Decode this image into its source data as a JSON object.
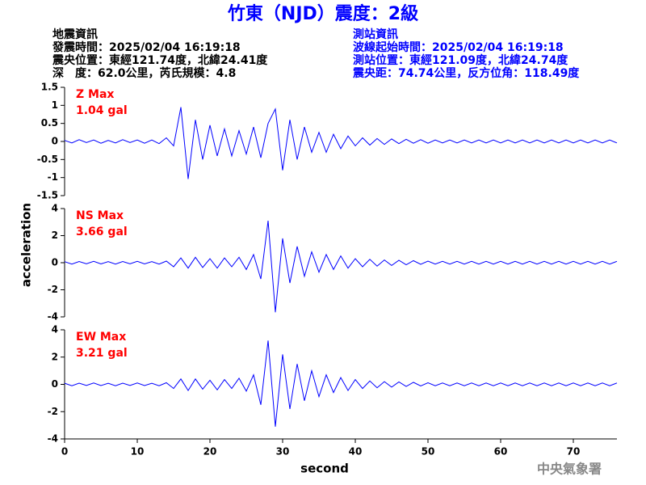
{
  "header": {
    "title": "竹東（NJD）震度：2級",
    "left": [
      "地震資訊",
      "發震時間：2025/02/04 16:19:18",
      "震央位置：東經121.74度，北緯24.41度",
      "深　度：62.0公里，芮氏規模：4.8"
    ],
    "right": [
      "測站資訊",
      "波線起始時間：2025/02/04 16:19:18",
      "測站位置：東經121.09度，北緯24.74度",
      "震央距：74.74公里，反方位角：118.49度"
    ],
    "footer": "中央氣象署"
  },
  "chart_data": [
    {
      "type": "line",
      "annotation": "Z Max",
      "annotation_value": "1.04 gal",
      "color": "#0000ff",
      "xlim": [
        0,
        76
      ],
      "ylim": [
        -1.5,
        1.5
      ],
      "yticks": [
        -1.5,
        -1,
        -0.5,
        0,
        0.5,
        1,
        1.5
      ],
      "x": [
        0,
        1,
        2,
        3,
        4,
        5,
        6,
        7,
        8,
        9,
        10,
        11,
        12,
        13,
        14,
        15,
        16,
        17,
        18,
        19,
        20,
        21,
        22,
        23,
        24,
        25,
        26,
        27,
        28,
        29,
        30,
        31,
        32,
        33,
        34,
        35,
        36,
        37,
        38,
        39,
        40,
        41,
        42,
        43,
        44,
        45,
        46,
        47,
        48,
        49,
        50,
        51,
        52,
        53,
        54,
        55,
        56,
        57,
        58,
        59,
        60,
        61,
        62,
        63,
        64,
        65,
        66,
        67,
        68,
        69,
        70,
        71,
        72,
        73,
        74,
        75,
        76
      ],
      "values": [
        0.03,
        -0.04,
        0.05,
        -0.03,
        0.04,
        -0.05,
        0.03,
        -0.04,
        0.05,
        -0.03,
        0.04,
        -0.05,
        0.04,
        -0.06,
        0.1,
        -0.12,
        0.95,
        -1.04,
        0.6,
        -0.5,
        0.45,
        -0.4,
        0.35,
        -0.4,
        0.3,
        -0.35,
        0.4,
        -0.45,
        0.5,
        0.9,
        -0.8,
        0.6,
        -0.5,
        0.4,
        -0.3,
        0.25,
        -0.3,
        0.2,
        -0.2,
        0.15,
        -0.12,
        0.1,
        -0.1,
        0.08,
        -0.08,
        0.07,
        -0.06,
        0.06,
        -0.05,
        0.05,
        -0.05,
        0.04,
        -0.04,
        0.04,
        -0.04,
        0.04,
        -0.04,
        0.04,
        -0.04,
        0.04,
        -0.04,
        0.04,
        -0.04,
        0.04,
        -0.04,
        0.04,
        -0.04,
        0.04,
        -0.04,
        0.04,
        -0.04,
        0.04,
        -0.04,
        0.04,
        -0.04,
        0.04,
        -0.04
      ]
    },
    {
      "type": "line",
      "annotation": "NS Max",
      "annotation_value": "3.66 gal",
      "ylabel": "acceleration",
      "color": "#0000ff",
      "xlim": [
        0,
        76
      ],
      "ylim": [
        -4,
        4
      ],
      "yticks": [
        -4,
        -2,
        0,
        2,
        4
      ],
      "x": [
        0,
        1,
        2,
        3,
        4,
        5,
        6,
        7,
        8,
        9,
        10,
        11,
        12,
        13,
        14,
        15,
        16,
        17,
        18,
        19,
        20,
        21,
        22,
        23,
        24,
        25,
        26,
        27,
        28,
        29,
        30,
        31,
        32,
        33,
        34,
        35,
        36,
        37,
        38,
        39,
        40,
        41,
        42,
        43,
        44,
        45,
        46,
        47,
        48,
        49,
        50,
        51,
        52,
        53,
        54,
        55,
        56,
        57,
        58,
        59,
        60,
        61,
        62,
        63,
        64,
        65,
        66,
        67,
        68,
        69,
        70,
        71,
        72,
        73,
        74,
        75,
        76
      ],
      "values": [
        0.08,
        -0.1,
        0.09,
        -0.08,
        0.1,
        -0.09,
        0.08,
        -0.1,
        0.09,
        -0.08,
        0.1,
        -0.09,
        0.08,
        -0.1,
        0.12,
        -0.3,
        0.35,
        -0.4,
        0.4,
        -0.35,
        0.3,
        -0.4,
        0.35,
        -0.3,
        0.4,
        -0.5,
        0.6,
        -1.2,
        3.1,
        -3.66,
        1.8,
        -1.5,
        1.2,
        -1,
        0.8,
        -0.7,
        0.6,
        -0.5,
        0.5,
        -0.4,
        0.3,
        -0.3,
        0.25,
        -0.25,
        0.2,
        -0.2,
        0.18,
        -0.15,
        0.15,
        -0.12,
        0.12,
        -0.1,
        0.1,
        -0.1,
        0.1,
        -0.1,
        0.1,
        -0.1,
        0.1,
        -0.1,
        0.1,
        -0.1,
        0.1,
        -0.1,
        0.1,
        -0.1,
        0.1,
        -0.1,
        0.1,
        -0.1,
        0.1,
        -0.1,
        0.1,
        -0.1,
        0.1,
        -0.1,
        0.1
      ]
    },
    {
      "type": "line",
      "annotation": "EW Max",
      "annotation_value": "3.21 gal",
      "xlabel": "second",
      "color": "#0000ff",
      "xlim": [
        0,
        76
      ],
      "xticks": [
        0,
        10,
        20,
        30,
        40,
        50,
        60,
        70
      ],
      "ylim": [
        -4,
        4
      ],
      "yticks": [
        -4,
        -2,
        0,
        2,
        4
      ],
      "x": [
        0,
        1,
        2,
        3,
        4,
        5,
        6,
        7,
        8,
        9,
        10,
        11,
        12,
        13,
        14,
        15,
        16,
        17,
        18,
        19,
        20,
        21,
        22,
        23,
        24,
        25,
        26,
        27,
        28,
        29,
        30,
        31,
        32,
        33,
        34,
        35,
        36,
        37,
        38,
        39,
        40,
        41,
        42,
        43,
        44,
        45,
        46,
        47,
        48,
        49,
        50,
        51,
        52,
        53,
        54,
        55,
        56,
        57,
        58,
        59,
        60,
        61,
        62,
        63,
        64,
        65,
        66,
        67,
        68,
        69,
        70,
        71,
        72,
        73,
        74,
        75,
        76
      ],
      "values": [
        0.08,
        -0.1,
        0.09,
        -0.08,
        0.1,
        -0.09,
        0.08,
        -0.1,
        0.09,
        -0.08,
        0.1,
        -0.09,
        0.08,
        -0.1,
        0.12,
        -0.3,
        0.4,
        -0.45,
        0.4,
        -0.35,
        0.3,
        -0.4,
        0.35,
        -0.3,
        0.45,
        -0.5,
        0.7,
        -1.5,
        3.21,
        -3.1,
        2.2,
        -1.8,
        1.5,
        -1.2,
        1,
        -0.9,
        0.7,
        -0.6,
        0.5,
        -0.45,
        0.35,
        -0.3,
        0.25,
        -0.25,
        0.2,
        -0.2,
        0.18,
        -0.15,
        0.15,
        -0.12,
        0.12,
        -0.1,
        0.1,
        -0.1,
        0.1,
        -0.1,
        0.1,
        -0.1,
        0.1,
        -0.1,
        0.1,
        -0.1,
        0.1,
        -0.1,
        0.1,
        -0.1,
        0.1,
        -0.1,
        0.1,
        -0.1,
        0.1,
        -0.1,
        0.1,
        -0.1,
        0.1,
        -0.1,
        0.1
      ]
    }
  ]
}
